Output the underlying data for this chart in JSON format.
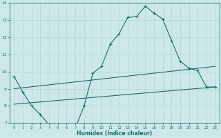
{
  "xlabel": "Humidex (Indice chaleur)",
  "ylabel": "",
  "bg_color": "#cce8e8",
  "line_color": "#1a6b6b",
  "grid_color": "#b8d8d8",
  "xlim": [
    -0.5,
    23.5
  ],
  "ylim": [
    7,
    14
  ],
  "yticks": [
    7,
    8,
    9,
    10,
    11,
    12,
    13,
    14
  ],
  "xticks": [
    0,
    1,
    2,
    3,
    4,
    5,
    6,
    7,
    8,
    9,
    10,
    11,
    12,
    13,
    14,
    15,
    16,
    17,
    18,
    19,
    20,
    21,
    22,
    23
  ],
  "curve1_x": [
    0,
    1,
    2,
    3,
    4,
    5,
    6,
    7,
    8,
    9,
    10,
    11,
    12,
    13,
    14,
    15,
    16,
    17,
    18,
    19,
    20,
    21,
    22,
    23
  ],
  "curve1_y": [
    9.7,
    8.8,
    8.0,
    7.5,
    6.9,
    6.95,
    6.7,
    6.7,
    8.0,
    9.9,
    10.3,
    11.6,
    12.2,
    13.15,
    13.2,
    13.8,
    13.4,
    13.05,
    11.8,
    10.6,
    10.2,
    10.05,
    9.1,
    9.1
  ],
  "curve2_x": [
    0,
    23
  ],
  "curve2_y": [
    9.0,
    10.3
  ],
  "curve3_x": [
    0,
    23
  ],
  "curve3_y": [
    8.1,
    9.1
  ]
}
